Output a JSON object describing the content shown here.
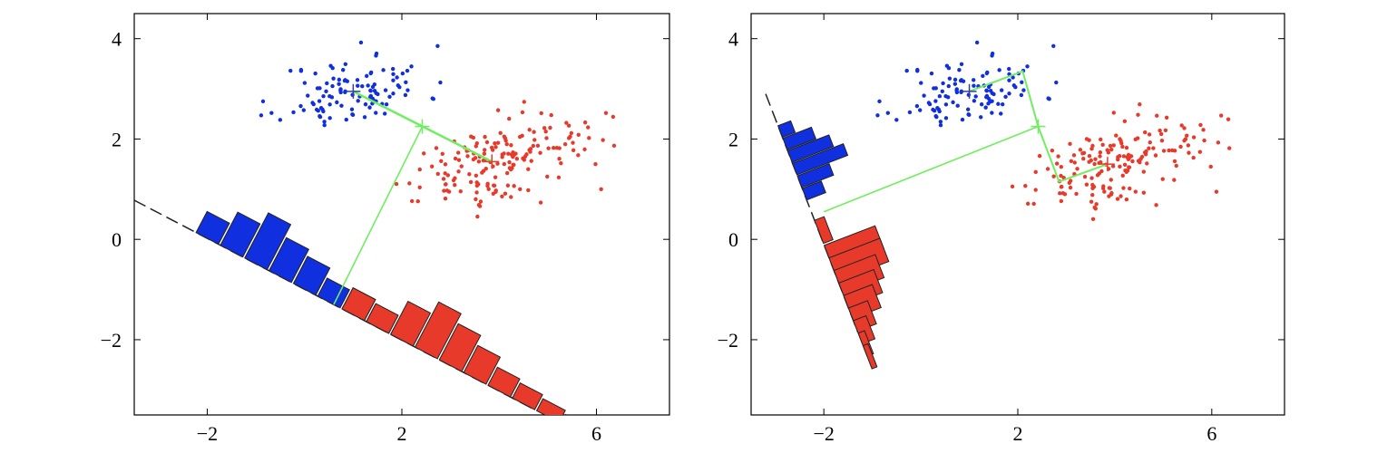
{
  "chart_data": [
    {
      "type": "scatter",
      "xlim": [
        -3.5,
        7.5
      ],
      "ylim": [
        -3.5,
        4.5
      ],
      "xticks": [
        -2,
        2,
        6
      ],
      "yticks": [
        -2,
        0,
        2,
        4
      ],
      "xtick_labels": [
        "−2",
        "2",
        "6"
      ],
      "ytick_labels": [
        "−2",
        "0",
        "2",
        "4"
      ],
      "grid": false,
      "colors": {
        "class1": "#1030e0",
        "class2": "#e83a2a",
        "line": "#70ee60",
        "axis": "#000000"
      },
      "class1_mean": [
        1.0,
        2.95
      ],
      "class2_mean": [
        3.85,
        1.55
      ],
      "mean_midpoint": [
        2.42,
        2.25
      ],
      "mean_connector": [
        [
          1.0,
          2.95
        ],
        [
          3.85,
          1.55
        ]
      ],
      "projection_direction_line": [
        [
          2.42,
          2.25
        ],
        [
          0.6,
          -1.3
        ]
      ],
      "projection_axis": [
        [
          -3.5,
          0.78
        ],
        [
          4.7,
          -3.38
        ]
      ],
      "histograms": [
        {
          "class": "class1",
          "bins": [
            [
              -2.0,
              0.35
            ],
            [
              -1.5,
              0.55
            ],
            [
              -1.0,
              0.75
            ],
            [
              -0.5,
              0.55
            ],
            [
              0.0,
              0.45
            ],
            [
              0.5,
              0.3
            ],
            [
              1.0,
              0.35
            ],
            [
              1.5,
              0.28
            ],
            [
              2.0,
              0.2
            ]
          ]
        },
        {
          "class": "class2",
          "bins": [
            [
              1.0,
              0.35
            ],
            [
              1.5,
              0.3
            ],
            [
              2.0,
              0.55
            ],
            [
              2.5,
              0.75
            ],
            [
              3.0,
              0.6
            ],
            [
              3.5,
              0.45
            ],
            [
              4.0,
              0.3
            ],
            [
              4.5,
              0.25
            ],
            [
              5.0,
              0.2
            ],
            [
              5.5,
              0.15
            ],
            [
              6.0,
              0.1
            ]
          ]
        }
      ]
    },
    {
      "type": "scatter",
      "xlim": [
        -3.5,
        7.5
      ],
      "ylim": [
        -3.5,
        4.5
      ],
      "xticks": [
        -2,
        2,
        6
      ],
      "yticks": [
        -2,
        0,
        2,
        4
      ],
      "xtick_labels": [
        "−2",
        "2",
        "6"
      ],
      "ytick_labels": [
        "−2",
        "0",
        "2",
        "4"
      ],
      "grid": false,
      "colors": {
        "class1": "#1030e0",
        "class2": "#e83a2a",
        "line": "#70ee60",
        "axis": "#000000"
      },
      "class1_mean": [
        1.0,
        2.95
      ],
      "class2_mean": [
        3.85,
        1.5
      ],
      "green_path": [
        [
          1.0,
          2.95
        ],
        [
          2.1,
          3.35
        ],
        [
          2.42,
          2.25
        ],
        [
          2.85,
          1.15
        ],
        [
          3.85,
          1.5
        ]
      ],
      "projection_direction_line": [
        [
          2.42,
          2.25
        ],
        [
          -2.0,
          0.55
        ]
      ],
      "projection_axis": [
        [
          -3.2,
          2.9
        ],
        [
          -1.3,
          -1.85
        ]
      ],
      "histograms": [
        {
          "class": "class1",
          "bins": [
            [
              -2.9,
              0.2
            ],
            [
              -2.8,
              0.45
            ],
            [
              -2.7,
              0.65
            ],
            [
              -2.6,
              0.8
            ],
            [
              -2.5,
              0.5
            ],
            [
              -2.4,
              0.3
            ]
          ]
        },
        {
          "class": "class2",
          "bins": [
            [
              -2.1,
              0.15
            ],
            [
              -1.9,
              0.8
            ],
            [
              -1.8,
              0.8
            ],
            [
              -1.7,
              0.65
            ],
            [
              -1.6,
              0.55
            ],
            [
              -1.5,
              0.45
            ],
            [
              -1.4,
              0.3
            ],
            [
              -1.3,
              0.2
            ],
            [
              -1.2,
              0.1
            ],
            [
              -1.1,
              0.08
            ]
          ]
        }
      ]
    }
  ]
}
